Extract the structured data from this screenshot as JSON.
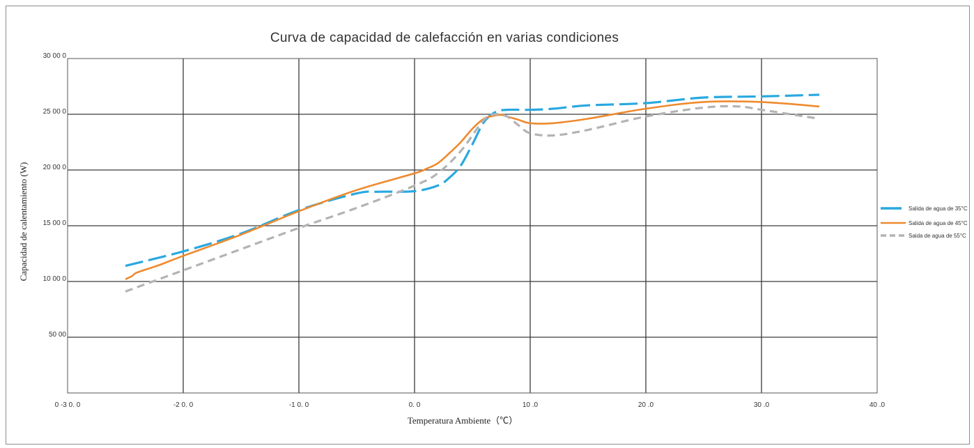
{
  "chart_data": {
    "type": "line",
    "title": "Curva de capacidad de calefacción en varias condiciones",
    "xlabel": "Temperatura Ambiente（℃）",
    "ylabel": "Capacidad de calentamiento (W)",
    "xlim": [
      -30,
      40
    ],
    "ylim": [
      0,
      30000
    ],
    "x_ticks": [
      -30,
      -20,
      -10,
      0,
      10,
      20,
      30,
      40
    ],
    "x_tick_labels": [
      "0 -3 0. 0",
      "-2 0. 0",
      "-1 0. 0",
      "0. 0",
      "10 .0",
      "20 .0",
      "30 .0",
      "40 .0"
    ],
    "y_ticks": [
      5000,
      10000,
      15000,
      20000,
      25000,
      30000
    ],
    "y_tick_labels": [
      "50 00",
      "10 00 0",
      "15 00 0",
      "20 00 0",
      "25 00 0",
      "30 00 0"
    ],
    "grid": true,
    "legend_position": "right",
    "series": [
      {
        "name": "Salida de agua de 35°C",
        "color": "#29a8e0",
        "dash": "long-dash",
        "x": [
          -25,
          -20,
          -15,
          -10,
          -5,
          -3,
          0,
          2,
          3,
          4,
          5,
          6,
          7,
          8,
          10,
          12,
          15,
          20,
          25,
          30,
          35
        ],
        "y": [
          11400,
          12700,
          14300,
          16400,
          17900,
          18050,
          18100,
          18600,
          19300,
          20400,
          22300,
          24300,
          25200,
          25400,
          25400,
          25500,
          25800,
          26000,
          26500,
          26600,
          26750
        ]
      },
      {
        "name": "Salida de agua de 45°C",
        "color": "#ee8a2e",
        "dash": "solid",
        "x": [
          -25,
          -24.4,
          -24,
          -22,
          -20,
          -15,
          -10,
          -5,
          0,
          1,
          2,
          3,
          4,
          5,
          6,
          7,
          7.5,
          8,
          9,
          10,
          12,
          15,
          20,
          25,
          30,
          35
        ],
        "y": [
          10200,
          10500,
          10800,
          11500,
          12300,
          14200,
          16300,
          18200,
          19700,
          20100,
          20600,
          21500,
          22500,
          23700,
          24600,
          24900,
          24950,
          24800,
          24500,
          24200,
          24200,
          24600,
          25500,
          26100,
          26100,
          25700
        ]
      },
      {
        "name": "Saida de agua de 55°C",
        "color": "#b3b3b3",
        "dash": "short-dash",
        "x": [
          -25,
          -20,
          -15,
          -10,
          -5,
          0,
          2,
          4,
          6,
          7,
          8,
          9,
          10,
          12,
          15,
          20,
          25,
          28,
          30,
          35
        ],
        "y": [
          9100,
          11000,
          12900,
          14800,
          16600,
          18600,
          19700,
          21700,
          24500,
          25000,
          24800,
          24000,
          23300,
          23100,
          23600,
          24800,
          25600,
          25700,
          25400,
          24600
        ]
      }
    ]
  }
}
